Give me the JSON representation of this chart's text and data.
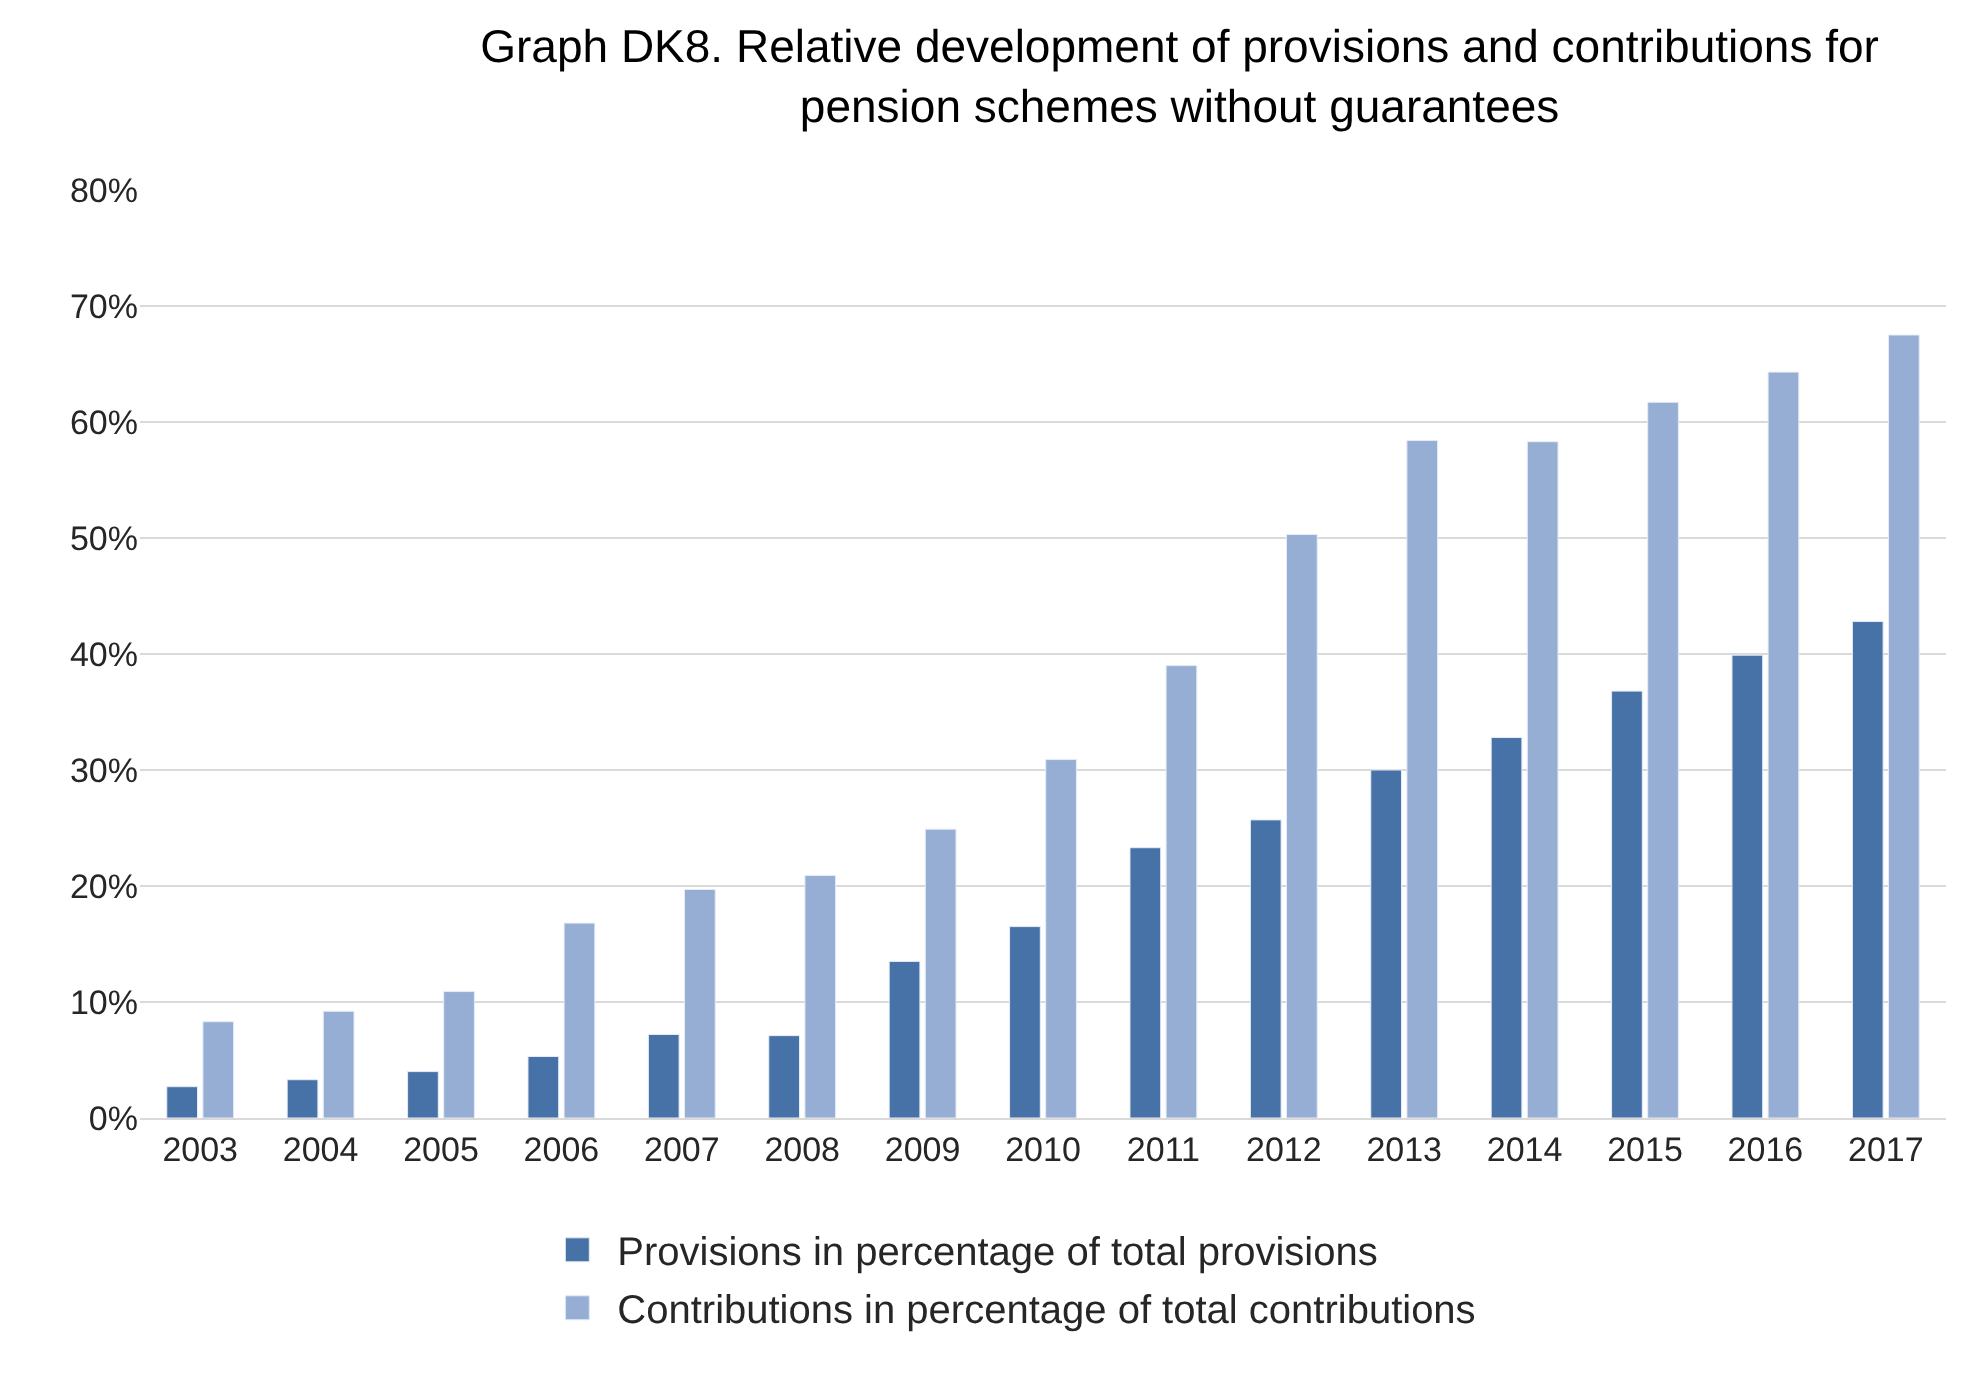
{
  "chart_data": {
    "type": "bar",
    "title": "Graph DK8. Relative development of provisions and contributions for pension schemes without guarantees",
    "categories": [
      "2003",
      "2004",
      "2005",
      "2006",
      "2007",
      "2008",
      "2009",
      "2010",
      "2011",
      "2012",
      "2013",
      "2014",
      "2015",
      "2016",
      "2017"
    ],
    "series": [
      {
        "name": "Provisions in percentage of total provisions",
        "color": "#4672a8",
        "values": [
          2.7,
          3.3,
          4.0,
          5.3,
          7.2,
          7.1,
          13.5,
          16.5,
          23.3,
          25.7,
          30.0,
          32.8,
          36.8,
          39.9,
          42.8
        ]
      },
      {
        "name": "Contributions in percentage of total contributions",
        "color": "#97aed4",
        "values": [
          8.3,
          9.2,
          10.9,
          16.8,
          19.7,
          20.9,
          24.9,
          30.9,
          39.0,
          50.3,
          58.4,
          58.3,
          61.7,
          64.3,
          67.5
        ]
      }
    ],
    "ylim": [
      0,
      80
    ],
    "yticks": [
      {
        "value": 0,
        "label": "0%"
      },
      {
        "value": 10,
        "label": "10%"
      },
      {
        "value": 20,
        "label": "20%"
      },
      {
        "value": 30,
        "label": "30%"
      },
      {
        "value": 40,
        "label": "40%"
      },
      {
        "value": 50,
        "label": "50%"
      },
      {
        "value": 60,
        "label": "60%"
      },
      {
        "value": 70,
        "label": "70%"
      },
      {
        "value": 80,
        "label": "80%"
      }
    ],
    "grid": "y",
    "legend": "bottom"
  }
}
